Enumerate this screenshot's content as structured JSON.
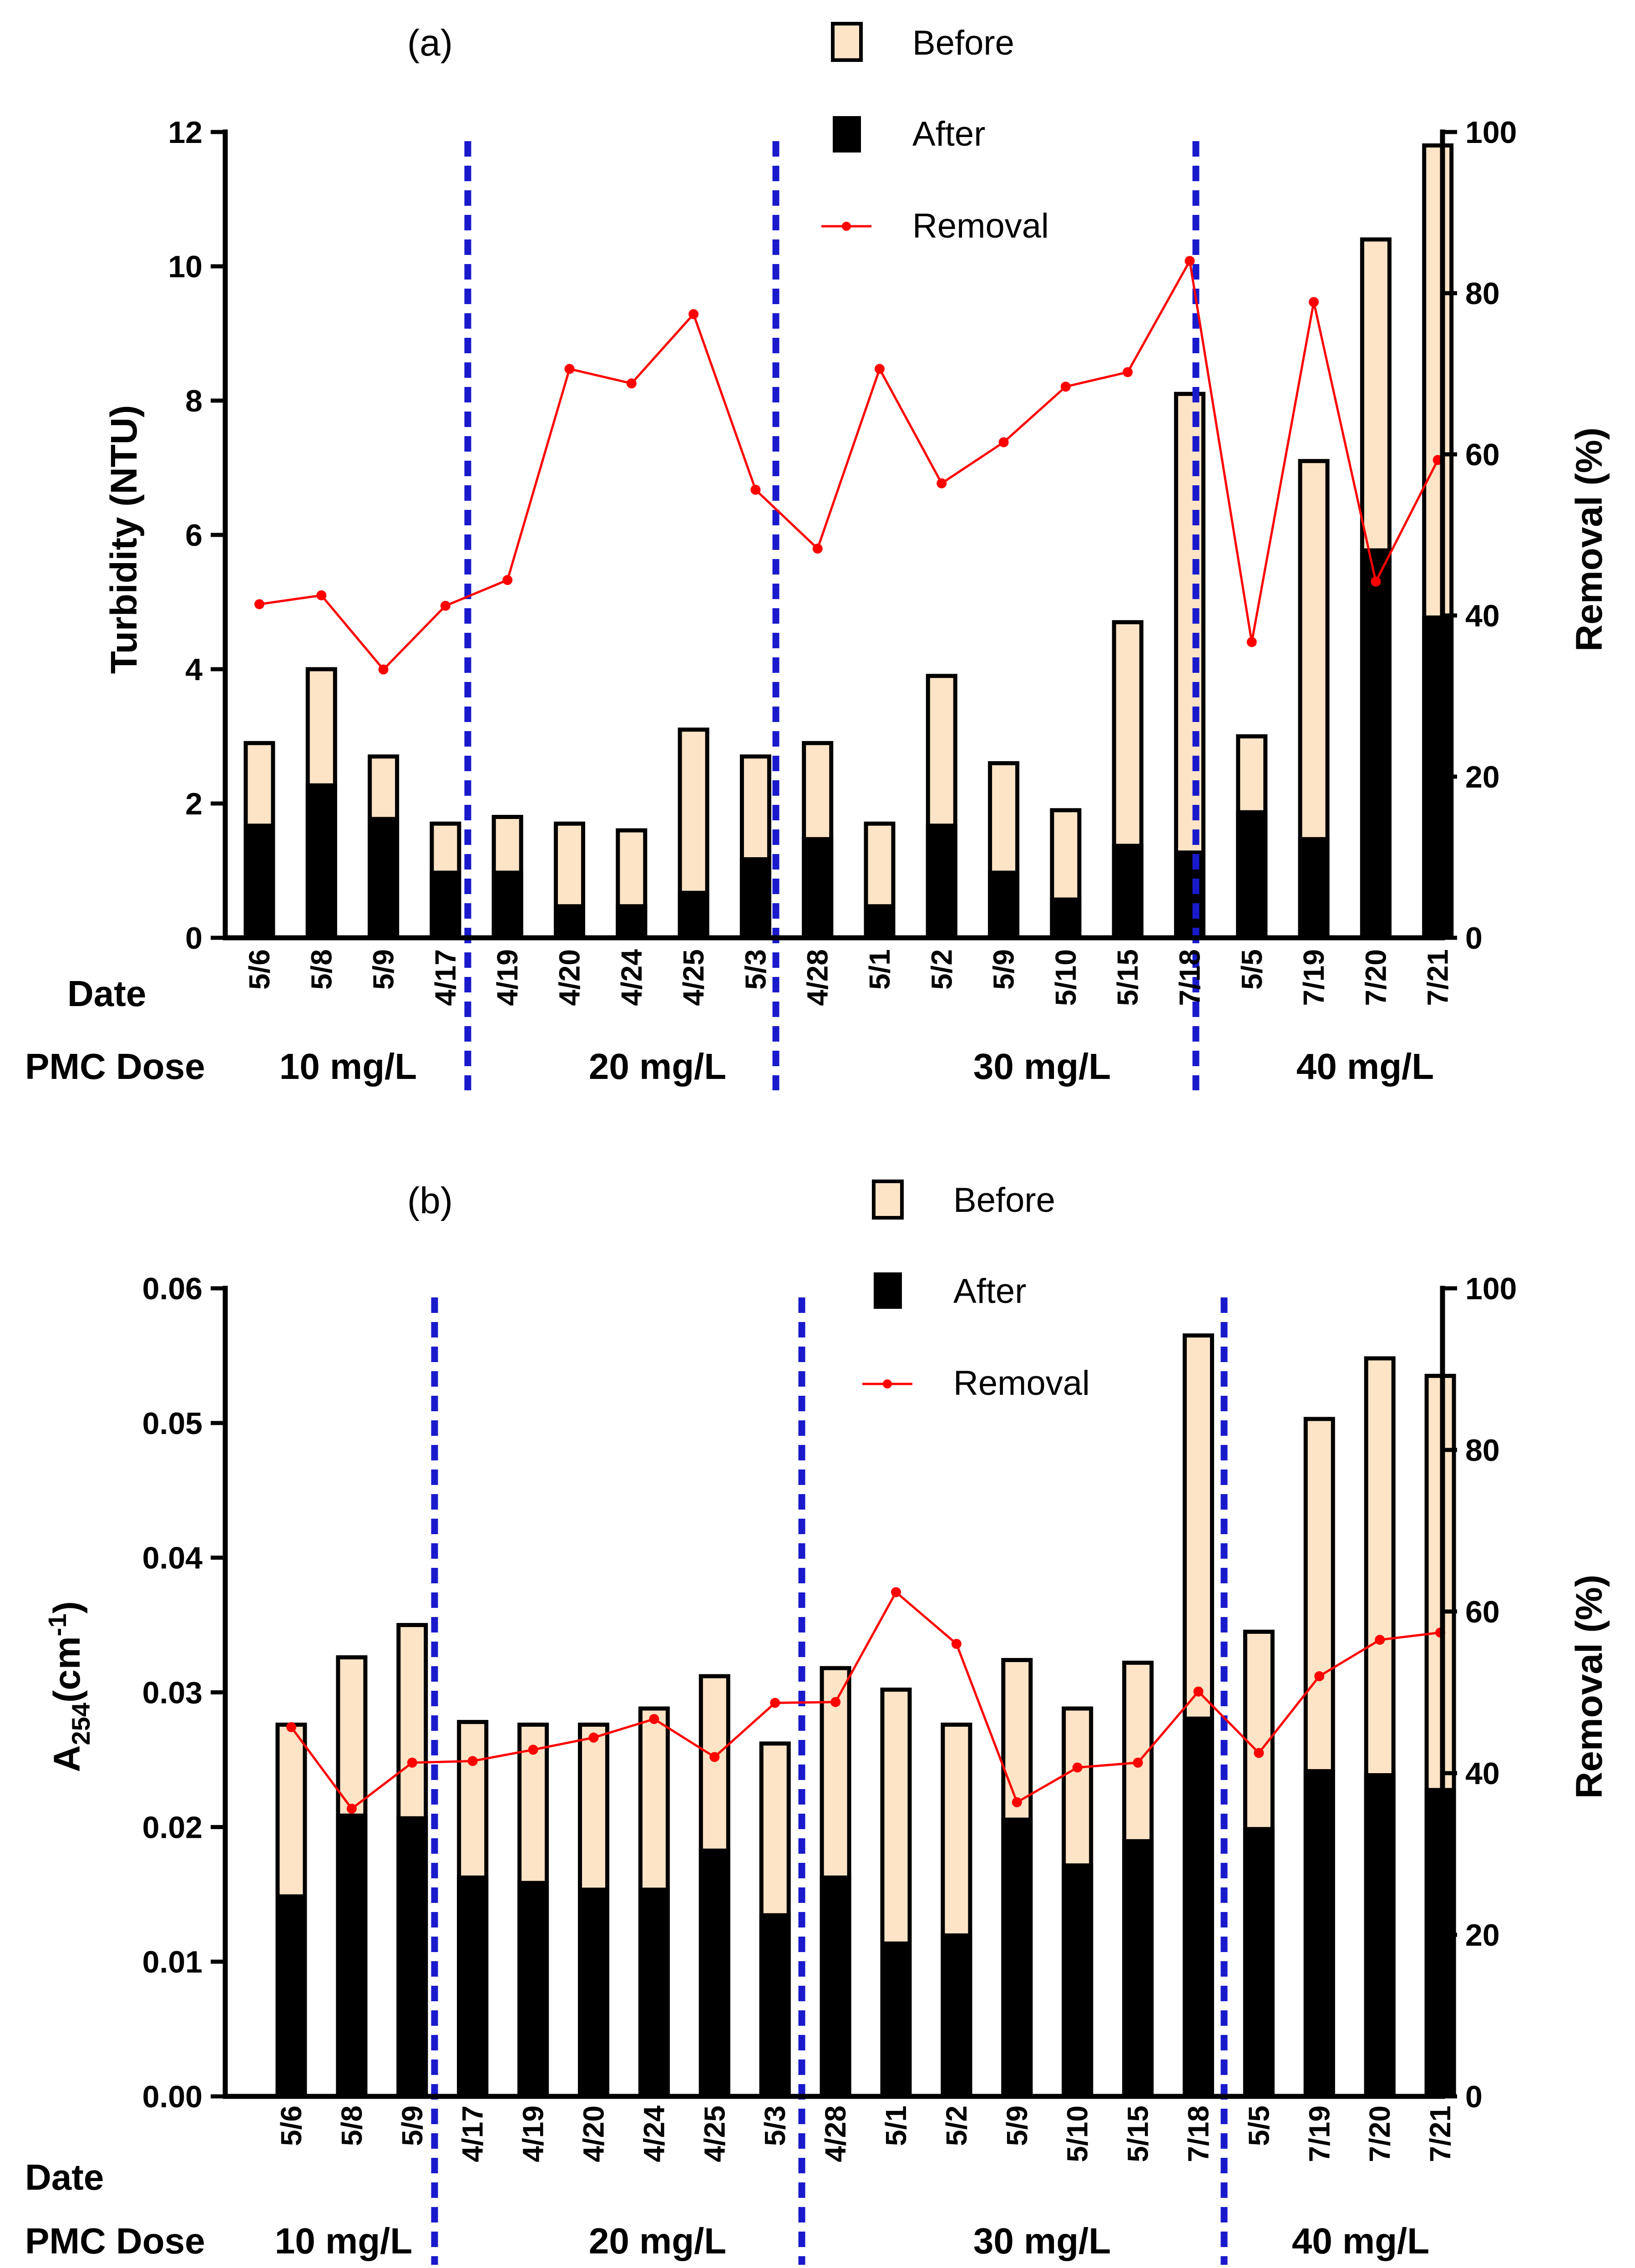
{
  "colors": {
    "before": "#fde4c6",
    "after": "#000000",
    "removal": "#ff0000",
    "divider": "#1a1acc"
  },
  "legend": {
    "before": "Before",
    "after": "After",
    "removal": "Removal"
  },
  "footer": {
    "date_label": "Date",
    "dose_label": "PMC Dose"
  },
  "chart_data": [
    {
      "type": "bar",
      "panel": "(a)",
      "ylabel": "Turbidity (NTU)",
      "y2label": "Removal (%)",
      "ylim": [
        0,
        12
      ],
      "y2lim": [
        0,
        100
      ],
      "yticks": [
        "0",
        "2",
        "4",
        "6",
        "8",
        "10",
        "12"
      ],
      "y2ticks": [
        "0",
        "20",
        "40",
        "60",
        "80",
        "100"
      ],
      "categories": [
        "5/6",
        "5/8",
        "5/9",
        "4/17",
        "4/19",
        "4/20",
        "4/24",
        "4/25",
        "5/3",
        "4/28",
        "5/1",
        "5/2",
        "5/9",
        "5/10",
        "5/15",
        "7/18",
        "5/5",
        "7/19",
        "7/20",
        "7/21"
      ],
      "series": [
        {
          "name": "Before",
          "values": [
            2.9,
            4.0,
            2.7,
            1.7,
            1.8,
            1.7,
            1.6,
            3.1,
            2.7,
            2.9,
            1.7,
            3.9,
            2.6,
            1.9,
            4.7,
            8.1,
            3.0,
            7.1,
            10.4,
            11.8
          ]
        },
        {
          "name": "After",
          "values": [
            1.7,
            2.3,
            1.8,
            1.0,
            1.0,
            0.5,
            0.5,
            0.7,
            1.2,
            1.5,
            0.5,
            1.7,
            1.0,
            0.6,
            1.4,
            1.3,
            1.9,
            1.5,
            5.8,
            4.8
          ]
        },
        {
          "name": "Removal",
          "axis": "right",
          "values": [
            41.4,
            42.5,
            33.3,
            41.2,
            44.4,
            70.6,
            68.8,
            77.4,
            55.6,
            48.3,
            70.6,
            56.4,
            61.5,
            68.4,
            70.2,
            84.0,
            36.7,
            78.9,
            44.2,
            59.3
          ]
        }
      ],
      "groups": [
        {
          "label": "10 mg/L"
        },
        {
          "label": "20 mg/L"
        },
        {
          "label": "30 mg/L"
        },
        {
          "label": "40 mg/L"
        }
      ]
    },
    {
      "type": "bar",
      "panel": "(b)",
      "ylabel_main": "A",
      "ylabel_sub": "254",
      "ylabel_rest": "(cm",
      "ylabel_sup": "-1",
      "ylabel_end": ")",
      "y2label": "Removal (%)",
      "ylim": [
        0,
        0.06
      ],
      "y2lim": [
        0,
        100
      ],
      "yticks": [
        "0.00",
        "0.01",
        "0.02",
        "0.03",
        "0.04",
        "0.05",
        "0.06"
      ],
      "y2ticks": [
        "0",
        "20",
        "40",
        "60",
        "80",
        "100"
      ],
      "categories": [
        "5/6",
        "5/8",
        "5/9",
        "4/17",
        "4/19",
        "4/20",
        "4/24",
        "4/25",
        "5/3",
        "4/28",
        "5/1",
        "5/2",
        "5/9",
        "5/10",
        "5/15",
        "7/18",
        "5/5",
        "7/19",
        "7/20",
        "7/21"
      ],
      "series": [
        {
          "name": "Before",
          "values": [
            0.0276,
            0.0326,
            0.035,
            0.0278,
            0.0276,
            0.0276,
            0.0288,
            0.0312,
            0.0262,
            0.0318,
            0.0302,
            0.0276,
            0.0324,
            0.0288,
            0.0322,
            0.0565,
            0.0345,
            0.0503,
            0.0548,
            0.0535
          ]
        },
        {
          "name": "After",
          "values": [
            0.015,
            0.021,
            0.0208,
            0.0164,
            0.016,
            0.0155,
            0.0155,
            0.0184,
            0.0136,
            0.0164,
            0.0115,
            0.0121,
            0.0207,
            0.0173,
            0.0191,
            0.0282,
            0.02,
            0.0243,
            0.024,
            0.0229
          ]
        },
        {
          "name": "Removal",
          "axis": "right",
          "values": [
            45.7,
            35.6,
            41.3,
            41.5,
            42.9,
            44.4,
            46.7,
            42.0,
            48.7,
            48.8,
            62.4,
            56.0,
            36.4,
            40.7,
            41.3,
            50.1,
            42.5,
            52.0,
            56.5,
            57.4
          ]
        }
      ],
      "groups": [
        {
          "label": "10 mg/L"
        },
        {
          "label": "20 mg/L"
        },
        {
          "label": "30 mg/L"
        },
        {
          "label": "40 mg/L"
        }
      ]
    }
  ]
}
